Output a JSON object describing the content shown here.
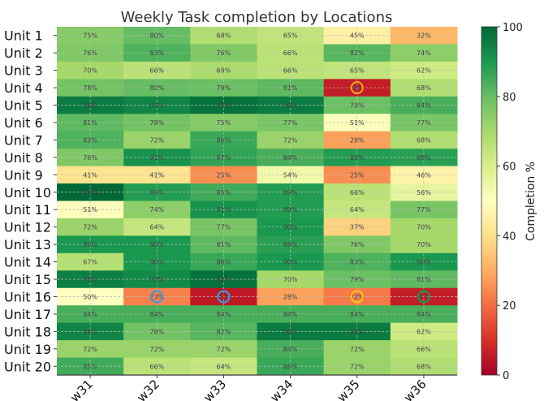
{
  "chart_data": {
    "type": "heatmap",
    "title": "Weekly Task completion by Locations",
    "xlabel": "",
    "ylabel": "",
    "columns": [
      "w31",
      "w32",
      "w33",
      "w34",
      "w35",
      "w36"
    ],
    "rows": [
      "Unit 1",
      "Unit 2",
      "Unit 3",
      "Unit 4",
      "Unit 5",
      "Unit 6",
      "Unit 7",
      "Unit 8",
      "Unit 9",
      "Unit 10",
      "Unit 11",
      "Unit 12",
      "Unit 13",
      "Unit 14",
      "Unit 15",
      "Unit 16",
      "Unit 17",
      "Unit 18",
      "Unit 19",
      "Unit 20"
    ],
    "values": [
      [
        75,
        80,
        68,
        65,
        45,
        32
      ],
      [
        76,
        83,
        76,
        66,
        82,
        74
      ],
      [
        70,
        66,
        69,
        66,
        65,
        62
      ],
      [
        78,
        80,
        79,
        81,
        6,
        68
      ],
      [
        96,
        94,
        98,
        96,
        79,
        84
      ],
      [
        81,
        78,
        75,
        77,
        51,
        77
      ],
      [
        83,
        72,
        86,
        72,
        28,
        68
      ],
      [
        76,
        91,
        87,
        84,
        89,
        88
      ],
      [
        41,
        41,
        25,
        54,
        25,
        46
      ],
      [
        100,
        89,
        85,
        89,
        66,
        56
      ],
      [
        51,
        74,
        91,
        89,
        64,
        77
      ],
      [
        72,
        64,
        77,
        90,
        37,
        70
      ],
      [
        90,
        90,
        81,
        88,
        76,
        70
      ],
      [
        67,
        90,
        86,
        90,
        83,
        90
      ],
      [
        95,
        93,
        98,
        70,
        79,
        81
      ],
      [
        50,
        23,
        5,
        28,
        22,
        6
      ],
      [
        84,
        84,
        84,
        84,
        84,
        84
      ],
      [
        94,
        78,
        82,
        96,
        96,
        62
      ],
      [
        72,
        72,
        72,
        84,
        72,
        66
      ],
      [
        85,
        66,
        64,
        86,
        72,
        68
      ]
    ],
    "value_suffix": "%",
    "colormap": "RdYlGn",
    "vmin": 0,
    "vmax": 100,
    "colorbar": {
      "label": "Completion %",
      "ticks": [
        0,
        20,
        40,
        60,
        80,
        100
      ]
    },
    "grid": true,
    "highlights": [
      {
        "row": "Unit 4",
        "col": "w35",
        "color": "#f0a020"
      },
      {
        "row": "Unit 16",
        "col": "w32",
        "color": "#3a9ad9"
      },
      {
        "row": "Unit 16",
        "col": "w33",
        "color": "#3a9ad9"
      },
      {
        "row": "Unit 16",
        "col": "w35",
        "color": "#f5c518"
      },
      {
        "row": "Unit 16",
        "col": "w36",
        "color": "#1a9850"
      }
    ]
  }
}
